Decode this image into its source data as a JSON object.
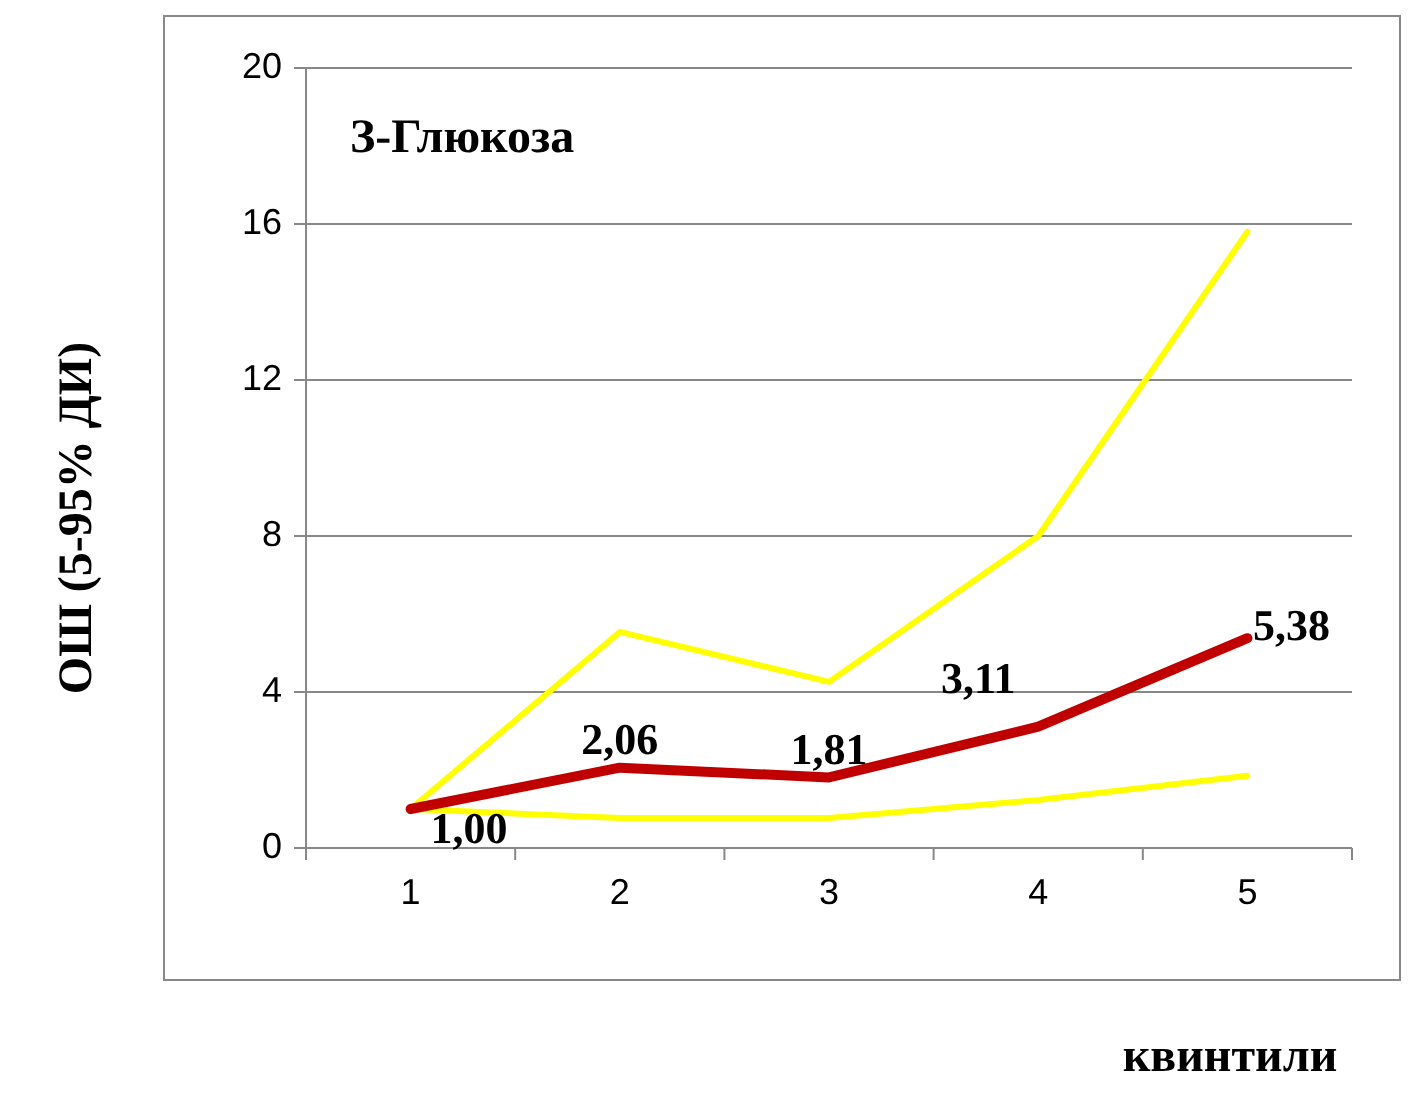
{
  "chart_data": {
    "type": "line",
    "title": "З-Глюкоза",
    "xlabel": "квинтили",
    "ylabel": "ОШ (5-95% ДИ)",
    "categories": [
      "1",
      "2",
      "3",
      "4",
      "5"
    ],
    "series": [
      {
        "color": "#ffff00",
        "values": [
          1.0,
          5.54,
          4.26,
          8.0,
          15.8
        ]
      },
      {
        "color": "#ffff00",
        "values": [
          1.0,
          0.77,
          0.77,
          1.23,
          1.85
        ]
      },
      {
        "color": "#c00000",
        "values": [
          1.0,
          2.06,
          1.81,
          3.11,
          5.38
        ],
        "value_labels": [
          "1,00",
          "2,06",
          "1,81",
          "3,11",
          "5,38"
        ]
      }
    ],
    "ylim": [
      0,
      20
    ],
    "yticks": [
      0,
      4,
      8,
      12,
      16,
      20
    ],
    "grid": "y",
    "marker": "none",
    "line_style": "solid"
  }
}
